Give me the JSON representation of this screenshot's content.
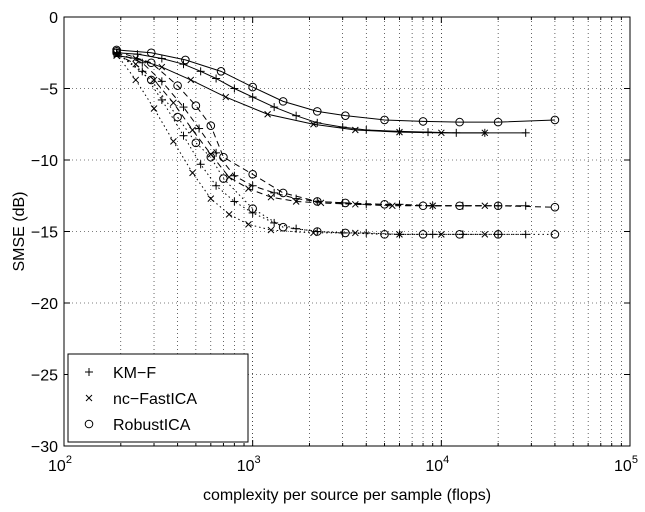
{
  "chart_data": {
    "type": "line",
    "title": "",
    "xlabel": "complexity per source per sample (flops)",
    "ylabel": "SMSE (dB)",
    "xscale": "log",
    "xlim": [
      100,
      100000
    ],
    "ylim": [
      -30,
      0
    ],
    "x_ticks": [
      {
        "base": "10",
        "exp": "2"
      },
      {
        "base": "10",
        "exp": "3"
      },
      {
        "base": "10",
        "exp": "4"
      },
      {
        "base": "10",
        "exp": "5"
      }
    ],
    "y_ticks": [
      "0",
      "−5",
      "−10",
      "−15",
      "−20",
      "−25",
      "−30"
    ],
    "y_tick_values": [
      0,
      -5,
      -10,
      -15,
      -20,
      -25,
      -30
    ],
    "grid": true,
    "legend_position": "bottom-left",
    "legend": [
      {
        "label": "KM−F",
        "marker": "plus"
      },
      {
        "label": "nc−FastICA",
        "marker": "x"
      },
      {
        "label": "RobustICA",
        "marker": "circle"
      }
    ],
    "series": [
      {
        "marker": "plus",
        "style": "solid",
        "points": [
          [
            190,
            -2.5
          ],
          [
            245,
            -2.6
          ],
          [
            330,
            -2.9
          ],
          [
            430,
            -3.3
          ],
          [
            530,
            -3.8
          ],
          [
            640,
            -4.3
          ],
          [
            800,
            -5.0
          ],
          [
            1000,
            -5.6
          ],
          [
            1300,
            -6.3
          ],
          [
            1700,
            -6.9
          ],
          [
            2200,
            -7.4
          ],
          [
            3000,
            -7.7
          ],
          [
            4000,
            -7.9
          ],
          [
            6000,
            -8.0
          ],
          [
            8500,
            -8.05
          ],
          [
            12000,
            -8.1
          ],
          [
            17000,
            -8.1
          ],
          [
            28000,
            -8.1
          ]
        ]
      },
      {
        "marker": "x",
        "style": "solid",
        "points": [
          [
            190,
            -2.7
          ],
          [
            240,
            -2.9
          ],
          [
            330,
            -3.5
          ],
          [
            470,
            -4.4
          ],
          [
            720,
            -5.6
          ],
          [
            1200,
            -6.8
          ],
          [
            2100,
            -7.5
          ],
          [
            3500,
            -7.9
          ],
          [
            6000,
            -8.05
          ],
          [
            10000,
            -8.1
          ],
          [
            17000,
            -8.1
          ]
        ]
      },
      {
        "marker": "circle",
        "style": "solid",
        "points": [
          [
            190,
            -2.3
          ],
          [
            290,
            -2.5
          ],
          [
            440,
            -3.0
          ],
          [
            680,
            -3.8
          ],
          [
            1000,
            -4.9
          ],
          [
            1450,
            -5.9
          ],
          [
            2200,
            -6.6
          ],
          [
            3100,
            -6.9
          ],
          [
            5000,
            -7.2
          ],
          [
            8000,
            -7.3
          ],
          [
            12500,
            -7.35
          ],
          [
            20000,
            -7.35
          ],
          [
            40000,
            -7.2
          ]
        ]
      },
      {
        "marker": "plus",
        "style": "dashed",
        "points": [
          [
            190,
            -2.5
          ],
          [
            260,
            -3.2
          ],
          [
            330,
            -4.5
          ],
          [
            430,
            -6.3
          ],
          [
            520,
            -7.8
          ],
          [
            640,
            -9.5
          ],
          [
            800,
            -11.1
          ],
          [
            1000,
            -11.8
          ],
          [
            1300,
            -12.3
          ],
          [
            1700,
            -12.7
          ],
          [
            2200,
            -12.9
          ],
          [
            3000,
            -13.0
          ],
          [
            4000,
            -13.1
          ],
          [
            6000,
            -13.1
          ],
          [
            9000,
            -13.2
          ],
          [
            13000,
            -13.2
          ],
          [
            20000,
            -13.2
          ],
          [
            28000,
            -13.2
          ]
        ]
      },
      {
        "marker": "x",
        "style": "dashed",
        "points": [
          [
            190,
            -2.6
          ],
          [
            240,
            -3.3
          ],
          [
            300,
            -4.4
          ],
          [
            380,
            -6.0
          ],
          [
            480,
            -7.9
          ],
          [
            600,
            -9.6
          ],
          [
            750,
            -11.2
          ],
          [
            950,
            -12.0
          ],
          [
            1250,
            -12.6
          ],
          [
            1700,
            -12.9
          ],
          [
            2300,
            -13.0
          ],
          [
            3500,
            -13.1
          ],
          [
            5500,
            -13.2
          ],
          [
            9000,
            -13.2
          ],
          [
            17000,
            -13.2
          ]
        ]
      },
      {
        "marker": "circle",
        "style": "dashed",
        "points": [
          [
            190,
            -2.4
          ],
          [
            290,
            -3.2
          ],
          [
            400,
            -4.8
          ],
          [
            500,
            -6.2
          ],
          [
            600,
            -7.6
          ],
          [
            700,
            -9.8
          ],
          [
            1000,
            -11.0
          ],
          [
            1450,
            -12.3
          ],
          [
            2200,
            -12.9
          ],
          [
            3100,
            -13.0
          ],
          [
            5000,
            -13.1
          ],
          [
            8000,
            -13.2
          ],
          [
            12500,
            -13.2
          ],
          [
            20000,
            -13.2
          ],
          [
            40000,
            -13.3
          ]
        ]
      },
      {
        "marker": "plus",
        "style": "dotted",
        "points": [
          [
            190,
            -2.5
          ],
          [
            260,
            -3.8
          ],
          [
            330,
            -5.8
          ],
          [
            430,
            -8.3
          ],
          [
            530,
            -10.3
          ],
          [
            640,
            -11.8
          ],
          [
            800,
            -12.9
          ],
          [
            1000,
            -13.7
          ],
          [
            1300,
            -14.4
          ],
          [
            1700,
            -14.8
          ],
          [
            2200,
            -15.0
          ],
          [
            3000,
            -15.1
          ],
          [
            4000,
            -15.1
          ],
          [
            6000,
            -15.2
          ],
          [
            9000,
            -15.2
          ],
          [
            13000,
            -15.2
          ],
          [
            20000,
            -15.2
          ],
          [
            28000,
            -15.2
          ]
        ]
      },
      {
        "marker": "x",
        "style": "dotted",
        "points": [
          [
            190,
            -2.6
          ],
          [
            240,
            -4.4
          ],
          [
            300,
            -6.4
          ],
          [
            380,
            -8.7
          ],
          [
            480,
            -10.9
          ],
          [
            600,
            -12.7
          ],
          [
            750,
            -13.8
          ],
          [
            950,
            -14.5
          ],
          [
            1250,
            -14.9
          ],
          [
            2100,
            -15.1
          ],
          [
            3500,
            -15.1
          ],
          [
            6000,
            -15.2
          ],
          [
            10000,
            -15.2
          ],
          [
            17000,
            -15.2
          ]
        ]
      },
      {
        "marker": "circle",
        "style": "dotted",
        "points": [
          [
            190,
            -2.5
          ],
          [
            290,
            -4.4
          ],
          [
            400,
            -7.0
          ],
          [
            500,
            -8.8
          ],
          [
            600,
            -9.8
          ],
          [
            700,
            -11.3
          ],
          [
            1000,
            -13.4
          ],
          [
            1450,
            -14.7
          ],
          [
            2200,
            -15.0
          ],
          [
            3100,
            -15.1
          ],
          [
            5000,
            -15.2
          ],
          [
            8000,
            -15.2
          ],
          [
            12500,
            -15.2
          ],
          [
            20000,
            -15.2
          ],
          [
            40000,
            -15.2
          ]
        ]
      }
    ]
  }
}
